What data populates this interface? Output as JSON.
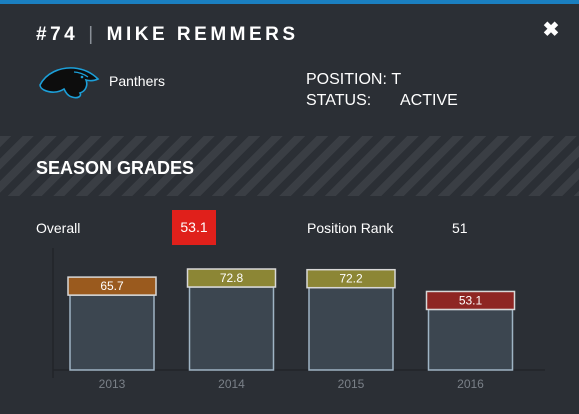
{
  "player": {
    "number": "#74",
    "name": "MIKE REMMERS",
    "team": "Panthers",
    "position_label": "POSITION:",
    "position_value": "T",
    "status_label": "STATUS:",
    "status_value": "ACTIVE"
  },
  "icons": {
    "close": "close-icon",
    "team_logo": "panthers-logo"
  },
  "section": {
    "title": "SEASON GRADES"
  },
  "summary": {
    "overall_label": "Overall",
    "overall_value": "53.1",
    "rank_label": "Position Rank",
    "rank_value": "51"
  },
  "colors": {
    "accent": "#1a7fc0",
    "grade_red": "#e0201b",
    "grade_orange": "#9a5a1e",
    "grade_olive": "#8c8635",
    "grade_darkred": "#8e2623"
  },
  "chart_data": {
    "type": "bar",
    "categories": [
      "2013",
      "2014",
      "2015",
      "2016"
    ],
    "values": [
      65.7,
      72.8,
      72.2,
      53.1
    ],
    "labels": [
      "65.7",
      "72.8",
      "72.2",
      "53.1"
    ],
    "label_colors": [
      "#9a5a1e",
      "#8c8635",
      "#8c8635",
      "#8e2623"
    ],
    "ylim": [
      0,
      100
    ]
  }
}
